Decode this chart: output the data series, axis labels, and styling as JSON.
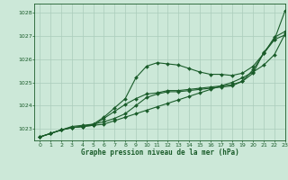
{
  "title": "Graphe pression niveau de la mer (hPa)",
  "background_color": "#cce8d8",
  "grid_color": "#aaccbb",
  "text_color": "#1a5c2a",
  "line_color": "#1a5c2a",
  "xlim": [
    -0.5,
    23
  ],
  "ylim": [
    1022.5,
    1028.4
  ],
  "yticks": [
    1023,
    1024,
    1025,
    1026,
    1027,
    1028
  ],
  "xticks": [
    0,
    1,
    2,
    3,
    4,
    5,
    6,
    7,
    8,
    9,
    10,
    11,
    12,
    13,
    14,
    15,
    16,
    17,
    18,
    19,
    20,
    21,
    22,
    23
  ],
  "lines": [
    [
      1022.65,
      1022.8,
      1022.95,
      1023.05,
      1023.1,
      1023.15,
      1023.2,
      1023.35,
      1023.5,
      1023.65,
      1023.8,
      1023.95,
      1024.1,
      1024.25,
      1024.4,
      1024.55,
      1024.7,
      1024.85,
      1025.0,
      1025.2,
      1025.45,
      1025.75,
      1026.2,
      1027.1
    ],
    [
      1022.65,
      1022.8,
      1022.95,
      1023.05,
      1023.1,
      1023.2,
      1023.5,
      1023.9,
      1024.3,
      1025.2,
      1025.7,
      1025.85,
      1025.8,
      1025.75,
      1025.6,
      1025.45,
      1025.35,
      1025.35,
      1025.3,
      1025.4,
      1025.7,
      1026.25,
      1026.95,
      1027.2
    ],
    [
      1022.65,
      1022.8,
      1022.95,
      1023.1,
      1023.15,
      1023.2,
      1023.3,
      1023.45,
      1023.65,
      1024.0,
      1024.35,
      1024.5,
      1024.6,
      1024.6,
      1024.65,
      1024.7,
      1024.75,
      1024.8,
      1024.85,
      1025.05,
      1025.4,
      1026.3,
      1026.85,
      1028.1
    ],
    [
      1022.65,
      1022.8,
      1022.95,
      1023.05,
      1023.1,
      1023.15,
      1023.45,
      1023.75,
      1024.05,
      1024.3,
      1024.5,
      1024.55,
      1024.65,
      1024.65,
      1024.7,
      1024.75,
      1024.8,
      1024.85,
      1024.9,
      1025.05,
      1025.55,
      1026.25,
      1026.85,
      1027.05
    ]
  ]
}
